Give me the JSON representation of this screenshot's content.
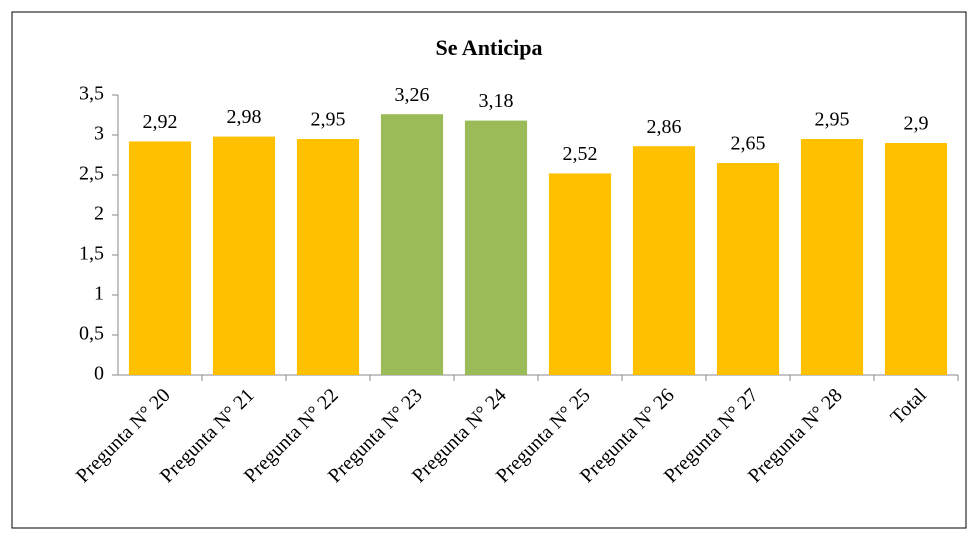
{
  "chart_data": {
    "type": "bar",
    "title": "Se Anticipa",
    "categories": [
      "Pregunta N° 20",
      "Pregunta N° 21",
      "Pregunta N° 22",
      "Pregunta N° 23",
      "Pregunta N° 24",
      "Pregunta N° 25",
      "Pregunta N° 26",
      "Pregunta N° 27",
      "Pregunta N° 28",
      "Total"
    ],
    "values": [
      2.92,
      2.98,
      2.95,
      3.26,
      3.18,
      2.52,
      2.86,
      2.65,
      2.95,
      2.9
    ],
    "value_labels": [
      "2,92",
      "2,98",
      "2,95",
      "3,26",
      "3,18",
      "2,52",
      "2,86",
      "2,65",
      "2,95",
      "2,9"
    ],
    "colors": [
      "#FFC000",
      "#FFC000",
      "#FFC000",
      "#9BBB59",
      "#9BBB59",
      "#FFC000",
      "#FFC000",
      "#FFC000",
      "#FFC000",
      "#FFC000"
    ],
    "ylim": [
      0,
      3.5
    ],
    "yticks": [
      0,
      {
        "value": 0.5,
        "label": "0,5"
      },
      1,
      {
        "value": 1.5,
        "label": "1,5"
      },
      2,
      {
        "value": 2.5,
        "label": "2,5"
      },
      3,
      {
        "value": 3.5,
        "label": "3,5"
      }
    ],
    "grid": false
  }
}
